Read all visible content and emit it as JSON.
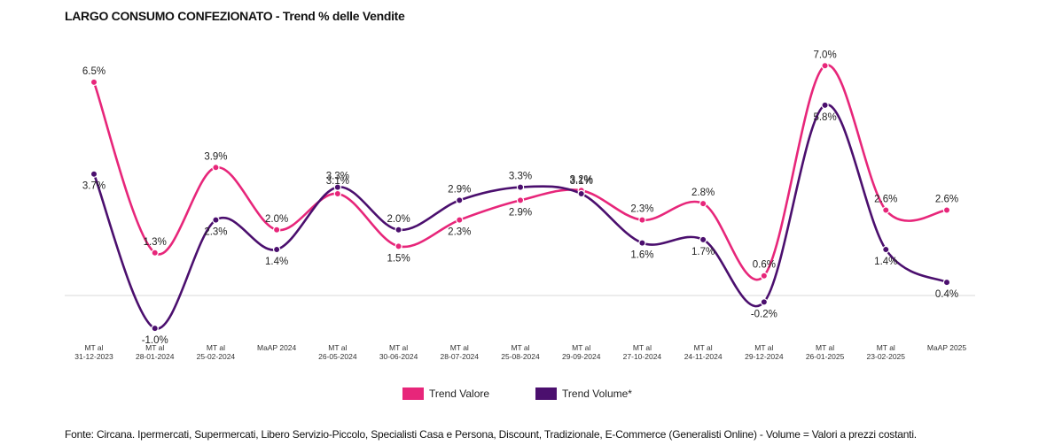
{
  "chart_data": {
    "type": "line",
    "title": "LARGO CONSUMO CONFEZIONATO - Trend % delle Vendite",
    "categories": [
      [
        "MT al",
        "31-12-2023"
      ],
      [
        "MT al",
        "28-01-2024"
      ],
      [
        "MT al",
        "25-02-2024"
      ],
      [
        "MaAP 2024"
      ],
      [
        "MT al",
        "26-05-2024"
      ],
      [
        "MT al",
        "30-06-2024"
      ],
      [
        "MT al",
        "28-07-2024"
      ],
      [
        "MT al",
        "25-08-2024"
      ],
      [
        "MT al",
        "29-09-2024"
      ],
      [
        "MT al",
        "27-10-2024"
      ],
      [
        "MT al",
        "24-11-2024"
      ],
      [
        "MT al",
        "29-12-2024"
      ],
      [
        "MT al",
        "26-01-2025"
      ],
      [
        "MT al",
        "23-02-2025"
      ],
      [
        "MaAP 2025"
      ]
    ],
    "series": [
      {
        "name": "Trend Valore",
        "color": "#e7267a",
        "values": [
          6.5,
          1.3,
          3.9,
          2.0,
          3.1,
          1.5,
          2.3,
          2.9,
          3.2,
          2.3,
          2.8,
          0.6,
          7.0,
          2.6,
          2.6
        ],
        "labels": [
          "6.5%",
          "1.3%",
          "3.9%",
          "2.0%",
          "3.1%",
          "1.5%",
          "2.3%",
          "2.9%",
          "3.2%",
          "2.3%",
          "2.8%",
          "0.6%",
          "7.0%",
          "2.6%",
          "2.6%"
        ]
      },
      {
        "name": "Trend Volume*",
        "color": "#4b0f6e",
        "values": [
          3.7,
          -1.0,
          2.3,
          1.4,
          3.3,
          2.0,
          2.9,
          3.3,
          3.1,
          1.6,
          1.7,
          -0.2,
          5.8,
          1.4,
          0.4
        ],
        "labels": [
          "3.7%",
          "-1.0%",
          "2.3%",
          "1.4%",
          "3.3%",
          "2.0%",
          "2.9%",
          "3.3%",
          "3.1%",
          "1.6%",
          "1.7%",
          "-0.2%",
          "5.8%",
          "1.4%",
          "0.4%"
        ]
      }
    ],
    "ylim": [
      -1.5,
      7.5
    ],
    "grid": false,
    "legend_position": "bottom"
  },
  "footnote": "Fonte: Circana. Ipermercati, Supermercati, Libero Servizio-Piccolo, Specialisti Casa e Persona, Discount, Tradizionale, E-Commerce (Generalisti Online) - Volume = Valori a prezzi costanti."
}
